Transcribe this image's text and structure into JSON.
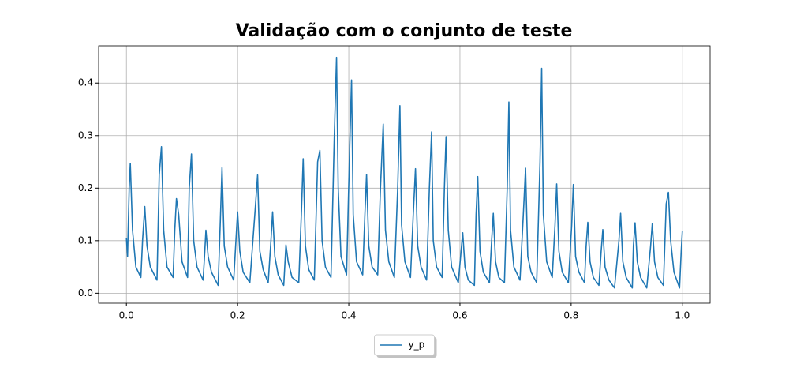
{
  "chart_data": {
    "type": "line",
    "title": "Validação com o conjunto de teste",
    "x": [
      0.0,
      0.002,
      0.005,
      0.007,
      0.011,
      0.017,
      0.026,
      0.029,
      0.033,
      0.037,
      0.043,
      0.055,
      0.059,
      0.063,
      0.067,
      0.073,
      0.084,
      0.087,
      0.09,
      0.094,
      0.1,
      0.11,
      0.113,
      0.117,
      0.121,
      0.127,
      0.138,
      0.141,
      0.143,
      0.147,
      0.153,
      0.165,
      0.169,
      0.172,
      0.176,
      0.182,
      0.193,
      0.197,
      0.2,
      0.204,
      0.21,
      0.222,
      0.232,
      0.236,
      0.24,
      0.246,
      0.255,
      0.26,
      0.263,
      0.267,
      0.273,
      0.283,
      0.287,
      0.291,
      0.298,
      0.31,
      0.315,
      0.318,
      0.322,
      0.328,
      0.338,
      0.344,
      0.348,
      0.352,
      0.358,
      0.368,
      0.374,
      0.378,
      0.381,
      0.386,
      0.396,
      0.401,
      0.405,
      0.408,
      0.414,
      0.425,
      0.429,
      0.432,
      0.436,
      0.442,
      0.452,
      0.457,
      0.462,
      0.466,
      0.472,
      0.482,
      0.488,
      0.492,
      0.495,
      0.501,
      0.511,
      0.516,
      0.52,
      0.524,
      0.53,
      0.54,
      0.545,
      0.549,
      0.552,
      0.558,
      0.568,
      0.572,
      0.575,
      0.579,
      0.585,
      0.597,
      0.602,
      0.605,
      0.609,
      0.615,
      0.626,
      0.629,
      0.632,
      0.636,
      0.642,
      0.653,
      0.657,
      0.66,
      0.664,
      0.67,
      0.68,
      0.685,
      0.688,
      0.691,
      0.697,
      0.708,
      0.714,
      0.718,
      0.722,
      0.728,
      0.738,
      0.744,
      0.747,
      0.75,
      0.756,
      0.766,
      0.771,
      0.774,
      0.778,
      0.784,
      0.795,
      0.801,
      0.804,
      0.808,
      0.814,
      0.824,
      0.827,
      0.83,
      0.834,
      0.84,
      0.85,
      0.854,
      0.857,
      0.861,
      0.868,
      0.878,
      0.886,
      0.889,
      0.893,
      0.899,
      0.91,
      0.912,
      0.915,
      0.919,
      0.925,
      0.936,
      0.943,
      0.946,
      0.95,
      0.956,
      0.966,
      0.971,
      0.975,
      0.979,
      0.985,
      0.995,
      0.998,
      1.0
    ],
    "series": [
      {
        "name": "y_p",
        "color": "#1f77b4",
        "values": [
          0.105,
          0.07,
          0.2,
          0.247,
          0.12,
          0.05,
          0.03,
          0.1,
          0.165,
          0.09,
          0.05,
          0.025,
          0.225,
          0.279,
          0.12,
          0.05,
          0.03,
          0.12,
          0.18,
          0.15,
          0.06,
          0.03,
          0.2,
          0.265,
          0.1,
          0.05,
          0.025,
          0.08,
          0.12,
          0.07,
          0.04,
          0.015,
          0.14,
          0.239,
          0.09,
          0.05,
          0.025,
          0.1,
          0.155,
          0.08,
          0.04,
          0.02,
          0.165,
          0.225,
          0.08,
          0.045,
          0.02,
          0.1,
          0.155,
          0.07,
          0.035,
          0.015,
          0.092,
          0.06,
          0.03,
          0.02,
          0.16,
          0.256,
          0.09,
          0.045,
          0.025,
          0.25,
          0.272,
          0.1,
          0.05,
          0.03,
          0.3,
          0.449,
          0.2,
          0.07,
          0.035,
          0.25,
          0.406,
          0.15,
          0.06,
          0.035,
          0.15,
          0.226,
          0.09,
          0.05,
          0.035,
          0.2,
          0.322,
          0.12,
          0.06,
          0.03,
          0.2,
          0.357,
          0.13,
          0.06,
          0.03,
          0.15,
          0.237,
          0.09,
          0.05,
          0.025,
          0.2,
          0.307,
          0.1,
          0.05,
          0.03,
          0.2,
          0.298,
          0.12,
          0.05,
          0.02,
          0.08,
          0.115,
          0.05,
          0.025,
          0.015,
          0.15,
          0.222,
          0.08,
          0.04,
          0.02,
          0.1,
          0.152,
          0.06,
          0.03,
          0.02,
          0.2,
          0.364,
          0.12,
          0.05,
          0.025,
          0.15,
          0.238,
          0.07,
          0.04,
          0.02,
          0.25,
          0.428,
          0.15,
          0.06,
          0.03,
          0.13,
          0.208,
          0.08,
          0.04,
          0.02,
          0.13,
          0.207,
          0.07,
          0.04,
          0.02,
          0.09,
          0.135,
          0.06,
          0.03,
          0.015,
          0.08,
          0.121,
          0.05,
          0.025,
          0.01,
          0.1,
          0.152,
          0.06,
          0.03,
          0.01,
          0.09,
          0.134,
          0.06,
          0.03,
          0.01,
          0.09,
          0.133,
          0.06,
          0.03,
          0.015,
          0.17,
          0.192,
          0.1,
          0.04,
          0.01,
          0.08,
          0.118
        ]
      }
    ],
    "xlim": [
      -0.05,
      1.05
    ],
    "xticks": [
      {
        "value": 0,
        "label": "0.0"
      },
      {
        "value": 0.2,
        "label": "0.2"
      },
      {
        "value": 0.4,
        "label": "0.4"
      },
      {
        "value": 0.6,
        "label": "0.6"
      },
      {
        "value": 0.8,
        "label": "0.8"
      },
      {
        "value": 1,
        "label": "1.0"
      }
    ],
    "ylim": [
      -0.019,
      0.471
    ],
    "yticks": [
      {
        "value": 0,
        "label": "0.0"
      },
      0.1,
      0.2,
      0.3,
      0.4
    ],
    "grid": true,
    "legend": "lower center outside"
  }
}
